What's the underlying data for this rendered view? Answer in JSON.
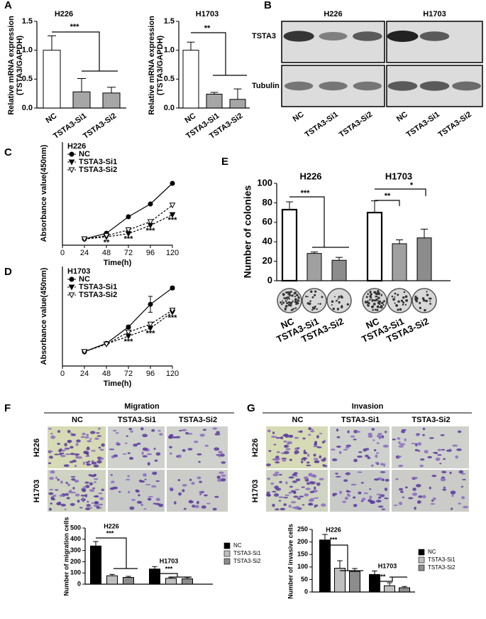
{
  "panel_labels": [
    "A",
    "B",
    "C",
    "D",
    "E",
    "F",
    "G"
  ],
  "blot": {
    "cell_lines": [
      "H226",
      "H1703"
    ],
    "proteins": [
      "TSTA3",
      "Tubulin"
    ],
    "lanes": [
      "NC",
      "TSTA3-Si1",
      "TSTA3-Si2"
    ]
  },
  "micrographs": [
    {
      "title": "Migration",
      "columns": [
        "NC",
        "TSTA3-Si1",
        "TSTA3-Si2"
      ],
      "rows": [
        "H226",
        "H1703"
      ]
    },
    {
      "title": "Invasion",
      "columns": [
        "NC",
        "TSTA3-Si1",
        "TSTA3-Si2"
      ],
      "rows": [
        "H226",
        "H1703"
      ]
    }
  ],
  "chart_data": [
    {
      "type": "bar",
      "title": "H226",
      "y_label": [
        "Relative mRNA expression",
        "(TSTA3/GAPDH)"
      ],
      "categories": [
        "NC",
        "TSTA3-Si1",
        "TSTA3-Si2"
      ],
      "values": [
        1.0,
        0.28,
        0.26
      ],
      "errors": [
        0.25,
        0.23,
        0.1
      ],
      "colors": [
        "#ffffff",
        "#a6a6a6",
        "#a6a6a6"
      ],
      "ylim": [
        0,
        1.5
      ],
      "yticks": [
        {
          "value": 0,
          "label": "0.0"
        },
        0.5,
        {
          "value": 1,
          "label": "1.0"
        },
        1.5
      ],
      "annotations": [
        "***"
      ]
    },
    {
      "type": "bar",
      "title": "H1703",
      "y_label": [
        "Relative mRNA expression",
        "(TSTA3/GAPDH)"
      ],
      "categories": [
        "NC",
        "TSTA3-Si1",
        "TSTA3-Si2"
      ],
      "values": [
        1.0,
        0.24,
        0.15
      ],
      "errors": [
        0.14,
        0.03,
        0.18
      ],
      "colors": [
        "#ffffff",
        "#a6a6a6",
        "#a6a6a6"
      ],
      "ylim": [
        0,
        1.5
      ],
      "yticks": [
        {
          "value": 0,
          "label": "0.0"
        },
        0.5,
        {
          "value": 1,
          "label": "1.0"
        },
        1.5
      ],
      "annotations": [
        "**"
      ]
    },
    {
      "type": "line",
      "title": "H226",
      "x_label": "Time(h)",
      "y_label": "Absorbance value(450nm)",
      "x": [
        24,
        48,
        72,
        96,
        120
      ],
      "xlim": [
        0,
        120
      ],
      "xticks": [
        0,
        24,
        48,
        72,
        96,
        120
      ],
      "ylim": [
        0,
        2.5
      ],
      "series": [
        {
          "name": "NC",
          "color": "#000000",
          "marker": "circle-filled",
          "line_style": "solid",
          "values": [
            0.15,
            0.29,
            0.69,
            1.0,
            1.5
          ]
        },
        {
          "name": "TSTA3-Si1",
          "color": "#000000",
          "marker": "triangle-filled",
          "line_style": "dashed",
          "values": [
            0.15,
            0.2,
            0.28,
            0.48,
            0.74
          ]
        },
        {
          "name": "TSTA3-Si2",
          "color": "#000000",
          "marker": "triangle-open",
          "line_style": "dashed",
          "values": [
            0.15,
            0.23,
            0.37,
            0.57,
            0.97
          ]
        }
      ],
      "annotations": [
        null,
        "**",
        "***",
        "***",
        "***"
      ]
    },
    {
      "type": "line",
      "title": "H1703",
      "x_label": "Time(h)",
      "y_label": "Absorbance value(450nm)",
      "x": [
        24,
        48,
        72,
        96,
        120
      ],
      "xlim": [
        0,
        120
      ],
      "xticks": [
        0,
        24,
        48,
        72,
        96,
        120
      ],
      "ylim": [
        0,
        2.5
      ],
      "series": [
        {
          "name": "NC",
          "color": "#000000",
          "marker": "circle-filled",
          "line_style": "solid",
          "values": [
            0.36,
            0.57,
            0.98,
            1.55,
            1.96
          ],
          "errors": [
            null,
            null,
            0.04,
            0.2,
            0.04
          ]
        },
        {
          "name": "TSTA3-Si1",
          "color": "#000000",
          "marker": "triangle-filled",
          "line_style": "dashed",
          "values": [
            0.36,
            0.55,
            0.75,
            0.95,
            1.35
          ]
        },
        {
          "name": "TSTA3-Si2",
          "color": "#000000",
          "marker": "triangle-open",
          "line_style": "dashed",
          "values": [
            0.36,
            0.55,
            0.85,
            1.05,
            1.4
          ]
        }
      ],
      "annotations": [
        null,
        null,
        "***",
        "***",
        "***"
      ]
    },
    {
      "type": "bar",
      "y_label": "Number of colonies",
      "group_labels": [
        "H226",
        "H1703"
      ],
      "categories": [
        "NC",
        "TSTA3-Si1",
        "TSTA3-Si2",
        "NC",
        "TSTA3-Si1",
        "TSTA3-Si2"
      ],
      "values": [
        73,
        28,
        21,
        70,
        38,
        44
      ],
      "errors": [
        8,
        1.5,
        3,
        12,
        4,
        9
      ],
      "colors": [
        "#ffffff",
        "#a0a0a0",
        "#8c8c8c",
        "#ffffff",
        "#a0a0a0",
        "#8c8c8c"
      ],
      "ylim": [
        0,
        100
      ],
      "yticks": [
        0,
        20,
        40,
        60,
        80,
        100
      ],
      "annotations": [
        "***",
        "**",
        "*"
      ]
    },
    {
      "type": "bar",
      "y_label": "Number of migration cells",
      "categories": [
        "H226",
        "H1703"
      ],
      "series": [
        {
          "name": "NC",
          "color": "#000000",
          "values": [
            340,
            135
          ],
          "errors": [
            40,
            22
          ]
        },
        {
          "name": "TSTA3-Si1",
          "color": "#bfbfbf",
          "values": [
            75,
            52
          ],
          "errors": [
            12,
            10
          ]
        },
        {
          "name": "TSTA3-Si2",
          "color": "#8c8c8c",
          "values": [
            60,
            48
          ],
          "errors": [
            10,
            12
          ]
        }
      ],
      "ylim": [
        0,
        500
      ],
      "yticks": [
        0,
        100,
        200,
        300,
        400,
        500
      ],
      "annotations": [
        "***",
        "***"
      ]
    },
    {
      "type": "bar",
      "y_label": "Number of invasive cells",
      "categories": [
        "H226",
        "H1703"
      ],
      "series": [
        {
          "name": "NC",
          "color": "#000000",
          "values": [
            208,
            70
          ],
          "errors": [
            22,
            14
          ]
        },
        {
          "name": "TSTA3-Si1",
          "color": "#bfbfbf",
          "values": [
            95,
            25
          ],
          "errors": [
            30,
            12
          ]
        },
        {
          "name": "TSTA3-Si2",
          "color": "#8c8c8c",
          "values": [
            82,
            17
          ],
          "errors": [
            12,
            5
          ]
        }
      ],
      "ylim": [
        0,
        250
      ],
      "yticks": [
        0,
        50,
        100,
        150,
        200,
        250
      ],
      "annotations": [
        "***",
        "***"
      ]
    }
  ]
}
